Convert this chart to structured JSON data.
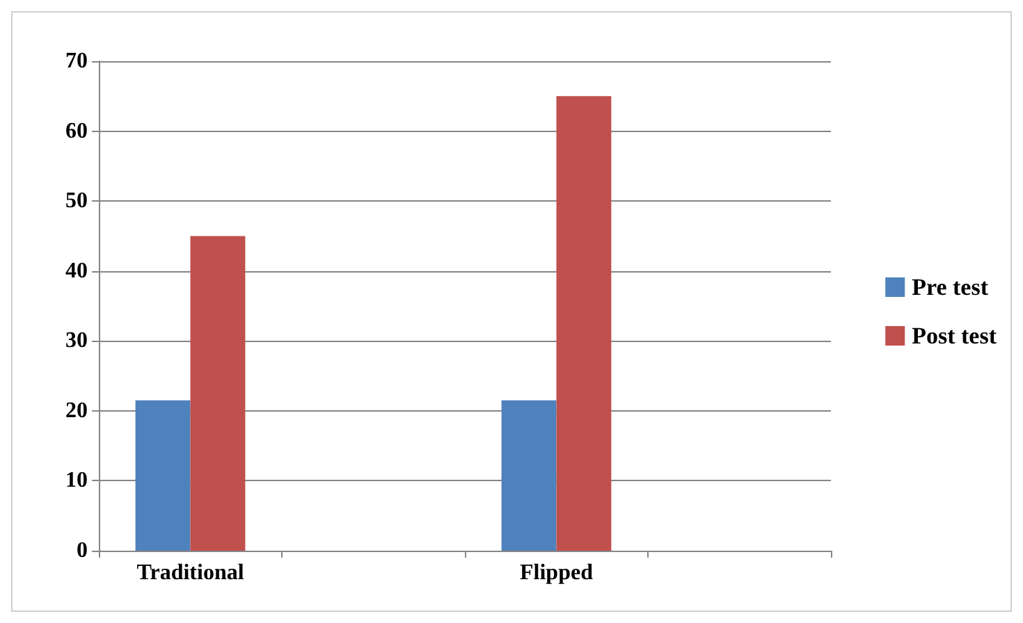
{
  "chart_data": {
    "type": "bar",
    "categories": [
      "Traditional",
      null,
      "Flipped",
      null
    ],
    "series": [
      {
        "name": "Pre test",
        "color": "#4f81bd",
        "values": [
          21.5,
          null,
          21.5,
          null
        ]
      },
      {
        "name": "Post test",
        "color": "#c0504d",
        "values": [
          45,
          null,
          65,
          null
        ]
      }
    ],
    "ylim": [
      0,
      70
    ],
    "yticks": [
      0,
      10,
      20,
      30,
      40,
      50,
      60,
      70
    ],
    "grid": "y",
    "legend": "right"
  }
}
